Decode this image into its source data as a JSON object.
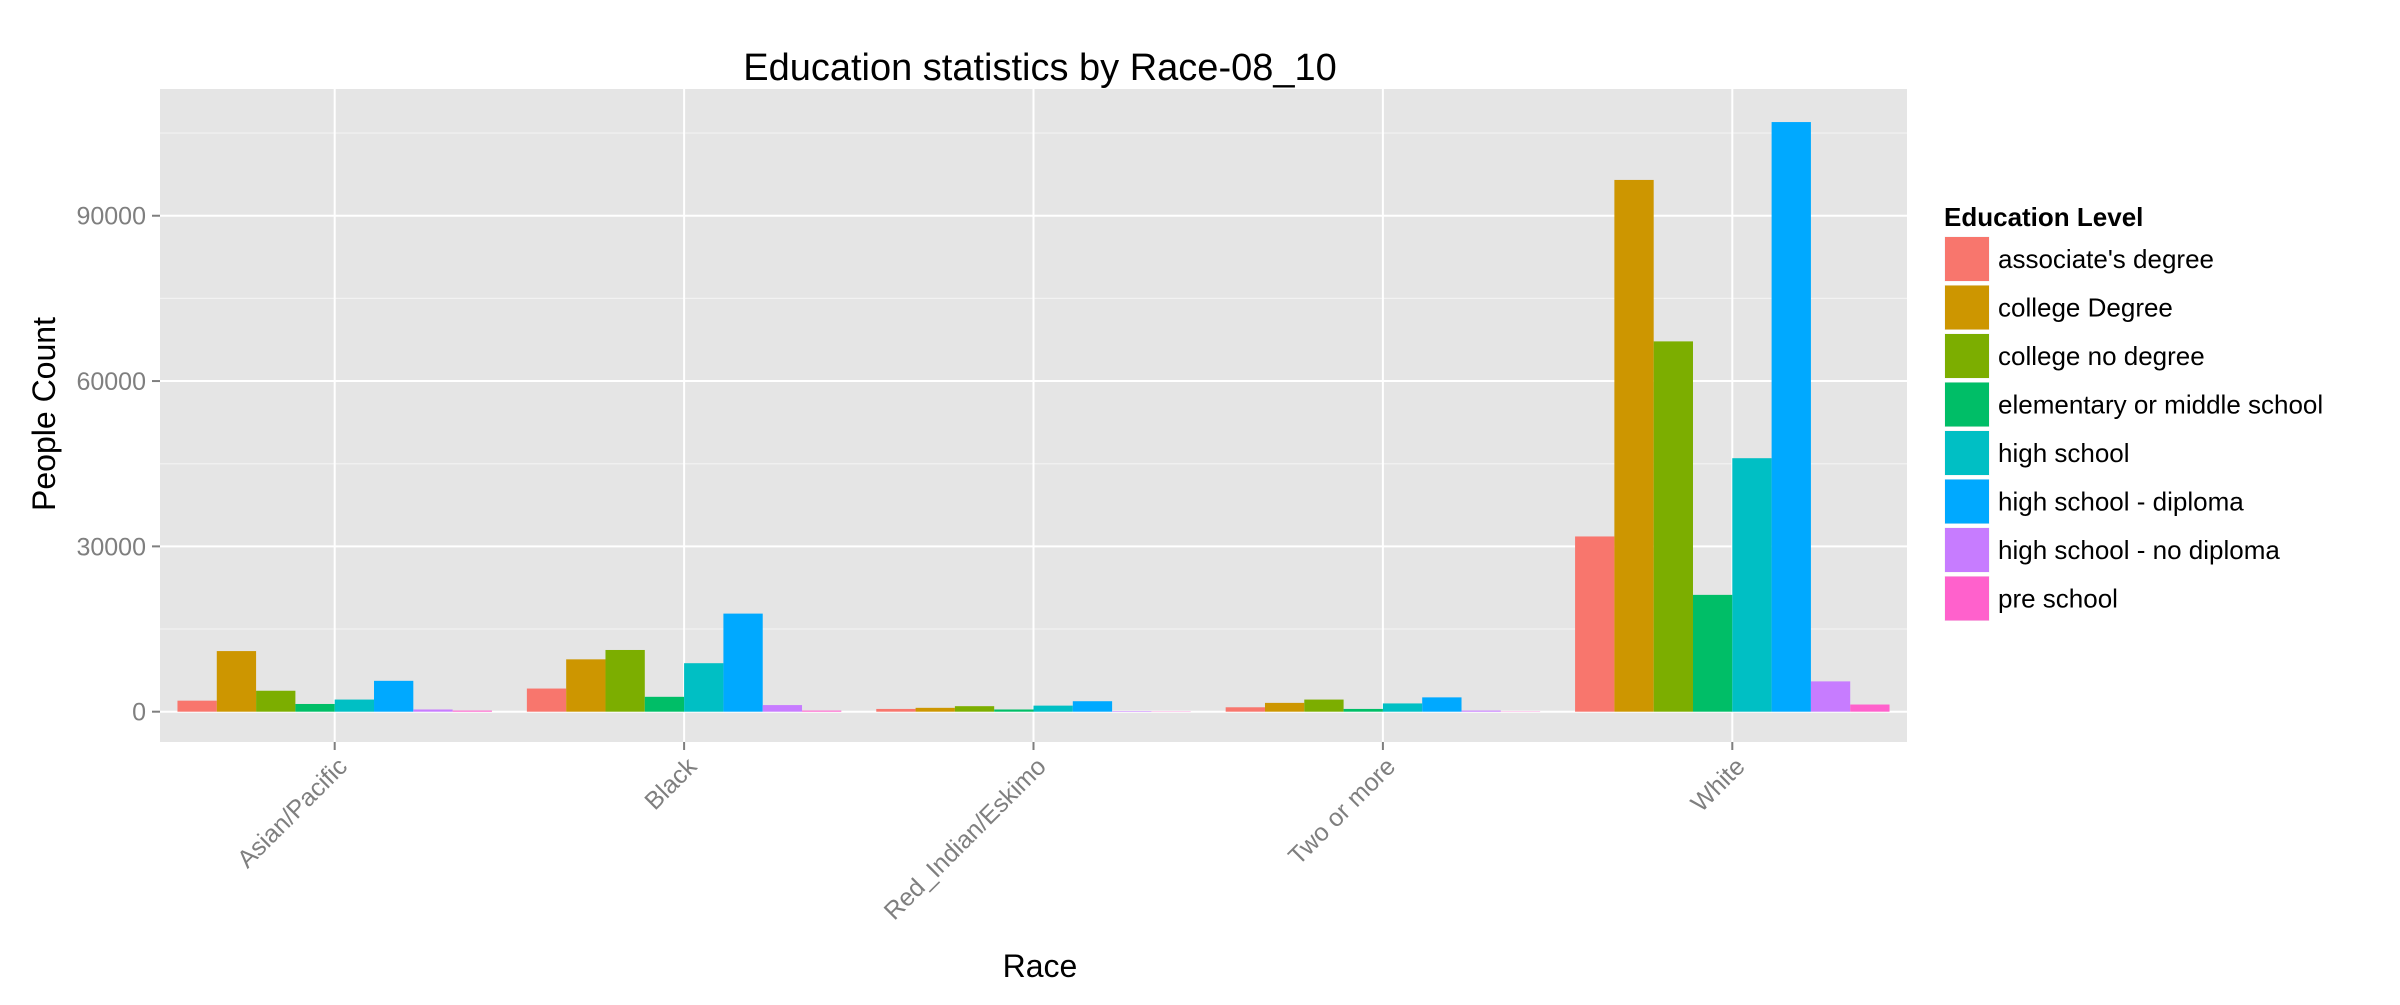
{
  "chart_data": {
    "type": "bar",
    "title": "Education statistics by Race-08_10",
    "xlabel": "Race",
    "ylabel": "People Count",
    "categories": [
      "Asian/Pacific",
      "Black",
      "Red_Indian/Eskimo",
      "Two or more",
      "White"
    ],
    "ylim": [
      -5500,
      113000
    ],
    "yticks": [
      0,
      30000,
      60000,
      90000
    ],
    "ytick_labels": [
      "0",
      "30000",
      "60000",
      "90000"
    ],
    "grid": true,
    "legend": {
      "title": "Education Level",
      "placement": "right"
    },
    "series": [
      {
        "name": "associate's degree",
        "color": "#F8766D",
        "values": [
          2000,
          4200,
          500,
          800,
          31800
        ]
      },
      {
        "name": "college Degree",
        "color": "#CD9600",
        "values": [
          11000,
          9500,
          700,
          1600,
          96500
        ]
      },
      {
        "name": "college no degree",
        "color": "#7CAE00",
        "values": [
          3800,
          11200,
          1000,
          2200,
          67200
        ]
      },
      {
        "name": "elementary or middle school",
        "color": "#00BE67",
        "values": [
          1400,
          2700,
          400,
          500,
          21200
        ]
      },
      {
        "name": "high school",
        "color": "#00BFC4",
        "values": [
          2200,
          8800,
          1100,
          1500,
          46000
        ]
      },
      {
        "name": "high school - diploma",
        "color": "#00A9FF",
        "values": [
          5600,
          17800,
          1900,
          2600,
          107000
        ]
      },
      {
        "name": "high school - no diploma",
        "color": "#C77CFF",
        "values": [
          400,
          1200,
          100,
          200,
          5500
        ]
      },
      {
        "name": "pre school",
        "color": "#FF61CC",
        "values": [
          200,
          200,
          50,
          50,
          1300
        ]
      }
    ]
  }
}
